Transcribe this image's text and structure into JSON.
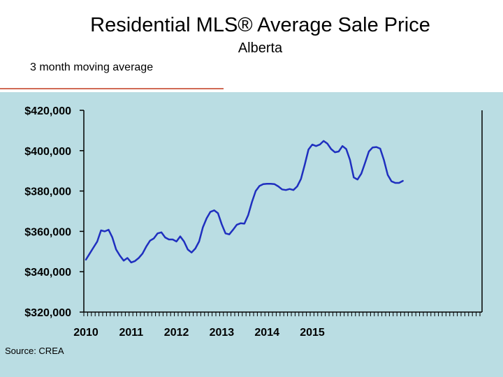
{
  "header": {
    "title": "Residential MLS® Average Sale Price",
    "subtitle": "Alberta",
    "note": "3 month moving average"
  },
  "footer": {
    "source": "Source: CREA"
  },
  "colors": {
    "panel": "#badde3",
    "line": "#1f2fbf",
    "rule": "#d06a55"
  },
  "chart_data": {
    "type": "line",
    "title": "Residential MLS® Average Sale Price",
    "subtitle": "Alberta",
    "xlabel": "",
    "ylabel": "",
    "ylim": [
      320000,
      420000
    ],
    "yticks": [
      320000,
      340000,
      360000,
      380000,
      400000,
      420000
    ],
    "ytick_labels": [
      "$320,000",
      "$340,000",
      "$360,000",
      "$380,000",
      "$400,000",
      "$420,000"
    ],
    "xticks": [
      "2010",
      "2011",
      "2012",
      "2013",
      "2014",
      "2015"
    ],
    "grid": false,
    "legend": "none",
    "series": [
      {
        "values": [
          346000,
          349000,
          352000,
          355000,
          360500,
          360000,
          360800,
          357000,
          351000,
          348000,
          345500,
          346800,
          344600,
          345300,
          346800,
          349000,
          352500,
          355400,
          356500,
          359000,
          359500,
          357000,
          356000,
          356000,
          355000,
          357500,
          355000,
          351000,
          349500,
          351500,
          355000,
          362000,
          366500,
          369700,
          370400,
          369000,
          363500,
          359000,
          358500,
          360800,
          363300,
          364000,
          363800,
          368000,
          374500,
          380000,
          382500,
          383400,
          383600,
          383600,
          383400,
          382300,
          380800,
          380500,
          381000,
          380500,
          382300,
          386000,
          393000,
          400600,
          403000,
          402300,
          403000,
          404800,
          403500,
          400800,
          399200,
          399600,
          402300,
          400800,
          395400,
          386700,
          385700,
          388600,
          394000,
          399600,
          401600,
          401800,
          401000,
          395300,
          388000,
          384800,
          384000,
          384000,
          385000
        ]
      }
    ]
  }
}
